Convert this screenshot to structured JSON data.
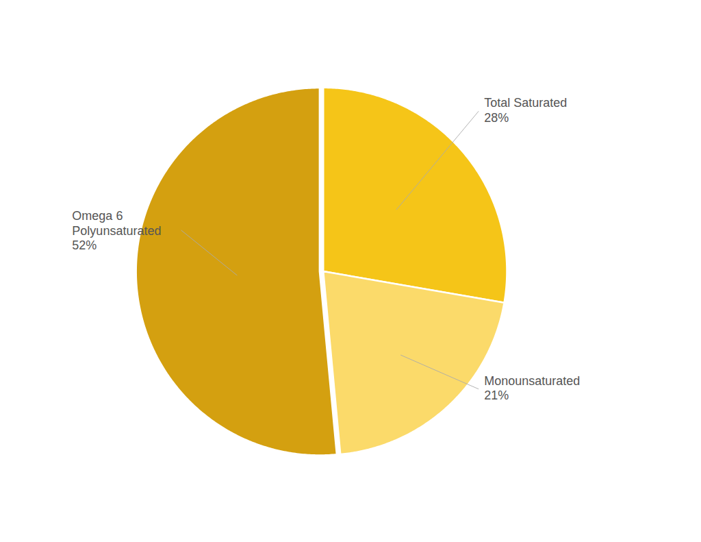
{
  "chart_data": {
    "type": "pie",
    "categories": [
      "Total Saturated",
      "Monounsaturated",
      "Omega 6\nPolyunsaturated"
    ],
    "values": [
      28,
      21,
      52
    ],
    "value_labels": [
      "28%",
      "21%",
      "52%"
    ],
    "colors": [
      "#F5C518",
      "#FBDA6A",
      "#D4A010"
    ],
    "data_labels": true
  }
}
